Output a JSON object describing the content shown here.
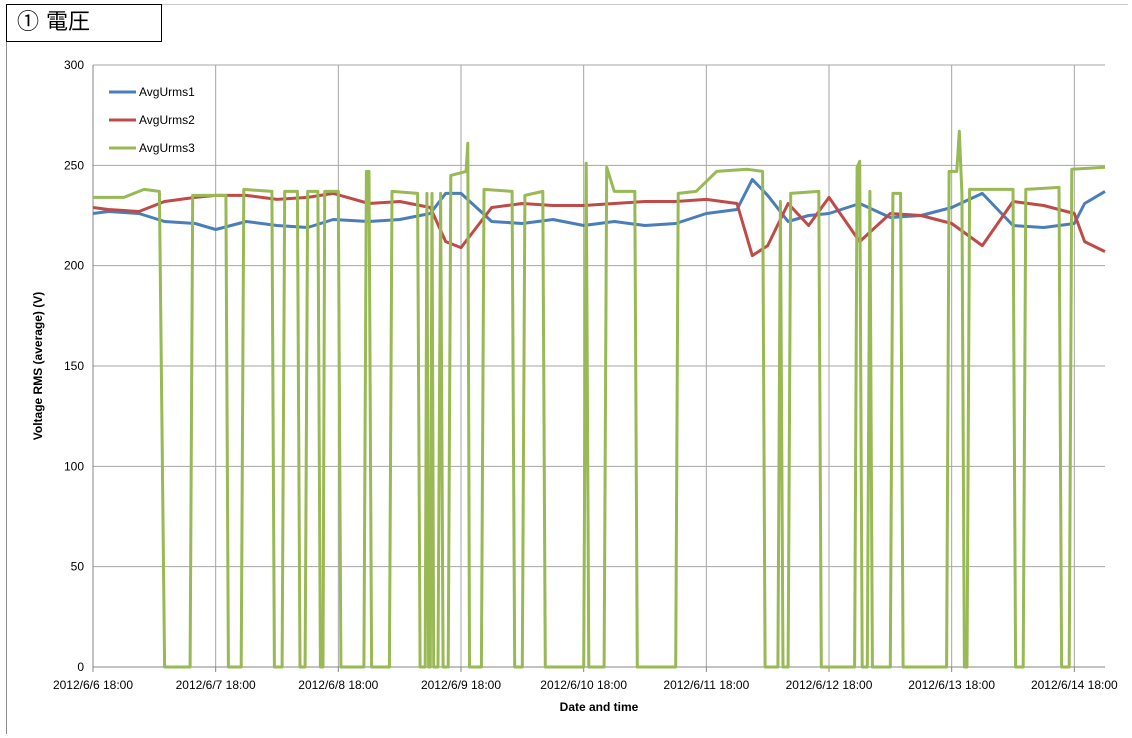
{
  "section_title": "① 電圧",
  "chart_data": {
    "type": "line",
    "title": "",
    "xlabel": "Date and time",
    "ylabel": "Voltage RMS (average) (V)",
    "ylim": [
      0,
      300
    ],
    "yticks": [
      0,
      50,
      100,
      150,
      200,
      250,
      300
    ],
    "xlim": [
      "2012/6/6 18:00",
      "2012/6/15 00:00"
    ],
    "xticks": [
      "2012/6/6 18:00",
      "2012/6/7 18:00",
      "2012/6/8 18:00",
      "2012/6/9 18:00",
      "2012/6/10 18:00",
      "2012/6/11 18:00",
      "2012/6/12 18:00",
      "2012/6/13 18:00",
      "2012/6/14 18:00"
    ],
    "grid": true,
    "legend": "top-left",
    "series": [
      {
        "name": "AvgUrms1",
        "color": "#4a7ebb",
        "points": [
          [
            "2012/6/6 18:00",
            226
          ],
          [
            "2012/6/6 21:00",
            227
          ],
          [
            "2012/6/7 03:00",
            226
          ],
          [
            "2012/6/7 08:00",
            222
          ],
          [
            "2012/6/7 14:00",
            221
          ],
          [
            "2012/6/7 18:00",
            218
          ],
          [
            "2012/6/8 00:00",
            222
          ],
          [
            "2012/6/8 06:00",
            220
          ],
          [
            "2012/6/8 12:00",
            219
          ],
          [
            "2012/6/8 17:00",
            223
          ],
          [
            "2012/6/9 00:00",
            222
          ],
          [
            "2012/6/9 06:00",
            223
          ],
          [
            "2012/6/9 12:00",
            226
          ],
          [
            "2012/6/9 15:00",
            236
          ],
          [
            "2012/6/9 18:00",
            236
          ],
          [
            "2012/6/10 00:00",
            222
          ],
          [
            "2012/6/10 06:00",
            221
          ],
          [
            "2012/6/10 12:00",
            223
          ],
          [
            "2012/6/10 18:00",
            220
          ],
          [
            "2012/6/11 00:00",
            222
          ],
          [
            "2012/6/11 06:00",
            220
          ],
          [
            "2012/6/11 12:00",
            221
          ],
          [
            "2012/6/11 18:00",
            226
          ],
          [
            "2012/6/12 00:00",
            228
          ],
          [
            "2012/6/12 03:00",
            243
          ],
          [
            "2012/6/12 06:00",
            235
          ],
          [
            "2012/6/12 10:00",
            222
          ],
          [
            "2012/6/12 14:00",
            225
          ],
          [
            "2012/6/12 18:00",
            226
          ],
          [
            "2012/6/13 00:00",
            231
          ],
          [
            "2012/6/13 06:00",
            224
          ],
          [
            "2012/6/13 12:00",
            225
          ],
          [
            "2012/6/13 18:00",
            229
          ],
          [
            "2012/6/14 00:00",
            236
          ],
          [
            "2012/6/14 06:00",
            220
          ],
          [
            "2012/6/14 12:00",
            219
          ],
          [
            "2012/6/14 18:00",
            221
          ],
          [
            "2012/6/14 20:00",
            231
          ],
          [
            "2012/6/15 00:00",
            237
          ]
        ]
      },
      {
        "name": "AvgUrms2",
        "color": "#be4b48",
        "points": [
          [
            "2012/6/6 18:00",
            229
          ],
          [
            "2012/6/6 21:00",
            228
          ],
          [
            "2012/6/7 03:00",
            227
          ],
          [
            "2012/6/7 08:00",
            232
          ],
          [
            "2012/6/7 14:00",
            234
          ],
          [
            "2012/6/7 18:00",
            235
          ],
          [
            "2012/6/8 00:00",
            235
          ],
          [
            "2012/6/8 06:00",
            233
          ],
          [
            "2012/6/8 12:00",
            234
          ],
          [
            "2012/6/8 17:00",
            236
          ],
          [
            "2012/6/9 00:00",
            231
          ],
          [
            "2012/6/9 06:00",
            232
          ],
          [
            "2012/6/9 12:00",
            229
          ],
          [
            "2012/6/9 15:00",
            212
          ],
          [
            "2012/6/9 18:00",
            209
          ],
          [
            "2012/6/10 00:00",
            229
          ],
          [
            "2012/6/10 06:00",
            231
          ],
          [
            "2012/6/10 12:00",
            230
          ],
          [
            "2012/6/10 18:00",
            230
          ],
          [
            "2012/6/11 00:00",
            231
          ],
          [
            "2012/6/11 06:00",
            232
          ],
          [
            "2012/6/11 12:00",
            232
          ],
          [
            "2012/6/11 18:00",
            233
          ],
          [
            "2012/6/12 00:00",
            231
          ],
          [
            "2012/6/12 03:00",
            205
          ],
          [
            "2012/6/12 06:00",
            210
          ],
          [
            "2012/6/12 10:00",
            231
          ],
          [
            "2012/6/12 14:00",
            220
          ],
          [
            "2012/6/12 18:00",
            234
          ],
          [
            "2012/6/13 00:00",
            212
          ],
          [
            "2012/6/13 06:00",
            226
          ],
          [
            "2012/6/13 12:00",
            225
          ],
          [
            "2012/6/13 18:00",
            221
          ],
          [
            "2012/6/14 00:00",
            210
          ],
          [
            "2012/6/14 06:00",
            232
          ],
          [
            "2012/6/14 12:00",
            230
          ],
          [
            "2012/6/14 18:00",
            226
          ],
          [
            "2012/6/14 20:00",
            212
          ],
          [
            "2012/6/15 00:00",
            207
          ]
        ]
      },
      {
        "name": "AvgUrms3",
        "color": "#98b954",
        "points": [
          [
            "2012/6/6 18:00",
            234
          ],
          [
            "2012/6/7 00:00",
            234
          ],
          [
            "2012/6/7 04:00",
            238
          ],
          [
            "2012/6/7 07:00",
            237
          ],
          [
            "2012/6/7 08:00",
            0
          ],
          [
            "2012/6/7 13:00",
            0
          ],
          [
            "2012/6/7 13:30",
            235
          ],
          [
            "2012/6/7 20:00",
            235
          ],
          [
            "2012/6/7 20:30",
            0
          ],
          [
            "2012/6/7 23:00",
            0
          ],
          [
            "2012/6/7 23:30",
            238
          ],
          [
            "2012/6/8 05:00",
            237
          ],
          [
            "2012/6/8 05:30",
            0
          ],
          [
            "2012/6/8 07:00",
            0
          ],
          [
            "2012/6/8 07:30",
            237
          ],
          [
            "2012/6/8 10:00",
            237
          ],
          [
            "2012/6/8 10:30",
            0
          ],
          [
            "2012/6/8 11:30",
            0
          ],
          [
            "2012/6/8 12:00",
            237
          ],
          [
            "2012/6/8 14:00",
            237
          ],
          [
            "2012/6/8 14:30",
            0
          ],
          [
            "2012/6/8 15:00",
            0
          ],
          [
            "2012/6/8 15:20",
            237
          ],
          [
            "2012/6/8 18:00",
            237
          ],
          [
            "2012/6/8 18:30",
            0
          ],
          [
            "2012/6/8 23:00",
            0
          ],
          [
            "2012/6/8 23:30",
            247
          ],
          [
            "2012/6/9 00:00",
            247
          ],
          [
            "2012/6/9 00:30",
            0
          ],
          [
            "2012/6/9 04:00",
            0
          ],
          [
            "2012/6/9 04:30",
            237
          ],
          [
            "2012/6/9 09:30",
            236
          ],
          [
            "2012/6/9 10:00",
            0
          ],
          [
            "2012/6/9 11:00",
            0
          ],
          [
            "2012/6/9 11:20",
            236
          ],
          [
            "2012/6/9 11:40",
            0
          ],
          [
            "2012/6/9 12:00",
            0
          ],
          [
            "2012/6/9 12:20",
            236
          ],
          [
            "2012/6/9 12:40",
            0
          ],
          [
            "2012/6/9 13:30",
            0
          ],
          [
            "2012/6/9 14:00",
            236
          ],
          [
            "2012/6/9 14:30",
            0
          ],
          [
            "2012/6/9 15:30",
            0
          ],
          [
            "2012/6/9 16:00",
            245
          ],
          [
            "2012/6/9 19:00",
            247
          ],
          [
            "2012/6/9 19:20",
            261
          ],
          [
            "2012/6/9 19:40",
            0
          ],
          [
            "2012/6/9 22:00",
            0
          ],
          [
            "2012/6/9 22:30",
            238
          ],
          [
            "2012/6/10 04:00",
            237
          ],
          [
            "2012/6/10 04:30",
            0
          ],
          [
            "2012/6/10 06:00",
            0
          ],
          [
            "2012/6/10 06:30",
            235
          ],
          [
            "2012/6/10 10:00",
            237
          ],
          [
            "2012/6/10 10:30",
            0
          ],
          [
            "2012/6/10 18:00",
            0
          ],
          [
            "2012/6/10 18:30",
            251
          ],
          [
            "2012/6/10 19:00",
            0
          ],
          [
            "2012/6/10 22:00",
            0
          ],
          [
            "2012/6/10 22:30",
            249
          ],
          [
            "2012/6/11 00:00",
            237
          ],
          [
            "2012/6/11 04:00",
            237
          ],
          [
            "2012/6/11 04:30",
            0
          ],
          [
            "2012/6/11 12:00",
            0
          ],
          [
            "2012/6/11 12:30",
            236
          ],
          [
            "2012/6/11 16:00",
            237
          ],
          [
            "2012/6/11 20:00",
            247
          ],
          [
            "2012/6/12 02:00",
            248
          ],
          [
            "2012/6/12 05:00",
            247
          ],
          [
            "2012/6/12 05:30",
            0
          ],
          [
            "2012/6/12 08:00",
            0
          ],
          [
            "2012/6/12 08:30",
            232
          ],
          [
            "2012/6/12 09:00",
            0
          ],
          [
            "2012/6/12 10:00",
            0
          ],
          [
            "2012/6/12 10:30",
            236
          ],
          [
            "2012/6/12 16:00",
            237
          ],
          [
            "2012/6/12 16:30",
            0
          ],
          [
            "2012/6/12 23:00",
            0
          ],
          [
            "2012/6/12 23:30",
            249
          ],
          [
            "2012/6/13 00:00",
            252
          ],
          [
            "2012/6/13 00:30",
            0
          ],
          [
            "2012/6/13 01:30",
            0
          ],
          [
            "2012/6/13 02:00",
            237
          ],
          [
            "2012/6/13 02:30",
            0
          ],
          [
            "2012/6/13 06:00",
            0
          ],
          [
            "2012/6/13 06:30",
            236
          ],
          [
            "2012/6/13 08:00",
            236
          ],
          [
            "2012/6/13 08:30",
            0
          ],
          [
            "2012/6/13 17:00",
            0
          ],
          [
            "2012/6/13 17:30",
            247
          ],
          [
            "2012/6/13 19:00",
            247
          ],
          [
            "2012/6/13 19:30",
            267
          ],
          [
            "2012/6/13 20:00",
            236
          ],
          [
            "2012/6/13 20:30",
            0
          ],
          [
            "2012/6/13 21:00",
            0
          ],
          [
            "2012/6/13 21:30",
            238
          ],
          [
            "2012/6/14 06:00",
            238
          ],
          [
            "2012/6/14 06:30",
            0
          ],
          [
            "2012/6/14 08:00",
            0
          ],
          [
            "2012/6/14 08:30",
            238
          ],
          [
            "2012/6/14 15:00",
            239
          ],
          [
            "2012/6/14 15:30",
            0
          ],
          [
            "2012/6/14 17:00",
            0
          ],
          [
            "2012/6/14 17:30",
            248
          ],
          [
            "2012/6/15 00:00",
            249
          ]
        ]
      }
    ]
  }
}
